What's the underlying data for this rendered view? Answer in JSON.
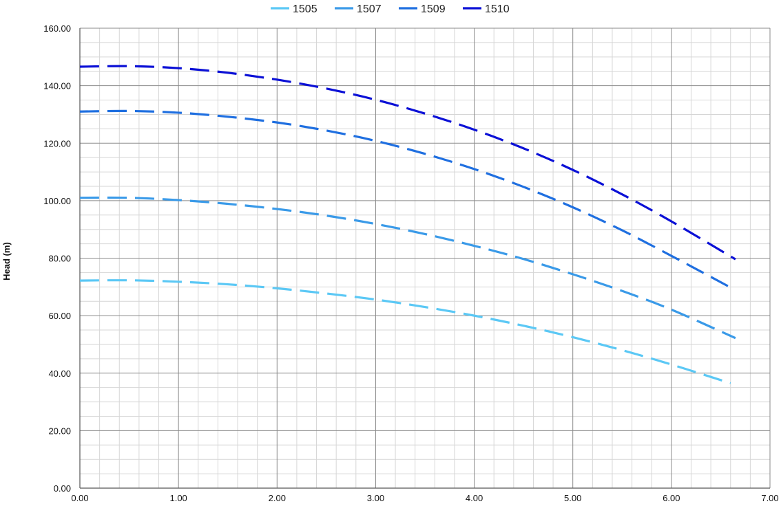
{
  "chart_data": {
    "type": "line",
    "title": "",
    "xlabel": "",
    "ylabel": "Head (m)",
    "xlim": [
      0,
      7
    ],
    "ylim": [
      0,
      160
    ],
    "x_ticks": [
      "0.00",
      "1.00",
      "2.00",
      "3.00",
      "4.00",
      "5.00",
      "6.00",
      "7.00"
    ],
    "y_ticks": [
      "0.00",
      "20.00",
      "40.00",
      "60.00",
      "80.00",
      "100.00",
      "120.00",
      "140.00",
      "160.00"
    ],
    "grid": true,
    "minor_grid": true,
    "legend_position": "top-center",
    "line_style": "dashed",
    "series": [
      {
        "name": "1505",
        "color": "#5bc8f5",
        "x": [
          0,
          0.5,
          1,
          1.5,
          2,
          2.5,
          3,
          3.5,
          4,
          4.5,
          5,
          5.5,
          6,
          6.6
        ],
        "y": [
          72.2,
          72.3,
          71.8,
          70.9,
          69.5,
          67.7,
          65.6,
          63.0,
          60.0,
          56.5,
          52.5,
          48.0,
          43.0,
          36.5
        ]
      },
      {
        "name": "1507",
        "color": "#3a9ae8",
        "x": [
          0,
          0.5,
          1,
          1.5,
          2,
          2.5,
          3,
          3.5,
          4,
          4.5,
          5,
          5.5,
          6,
          6.65
        ],
        "y": [
          101.0,
          101.0,
          100.2,
          98.9,
          97.1,
          94.8,
          91.9,
          88.4,
          84.3,
          79.7,
          74.4,
          68.6,
          62.1,
          52.2
        ]
      },
      {
        "name": "1509",
        "color": "#1f6fe0",
        "x": [
          0,
          0.5,
          1,
          1.5,
          2,
          2.5,
          3,
          3.5,
          4,
          4.5,
          5,
          5.5,
          6,
          6.6
        ],
        "y": [
          131.0,
          131.2,
          130.6,
          129.2,
          127.2,
          124.4,
          120.8,
          116.3,
          111.0,
          104.8,
          97.7,
          89.7,
          80.8,
          69.8
        ]
      },
      {
        "name": "1510",
        "color": "#0b10d6",
        "x": [
          0,
          0.5,
          1,
          1.5,
          2,
          2.5,
          3,
          3.5,
          4,
          4.5,
          5,
          5.5,
          6,
          6.65
        ],
        "y": [
          146.6,
          146.8,
          146.1,
          144.5,
          142.1,
          139.0,
          135.1,
          130.3,
          124.7,
          118.2,
          110.7,
          102.2,
          92.8,
          79.6
        ]
      }
    ]
  }
}
